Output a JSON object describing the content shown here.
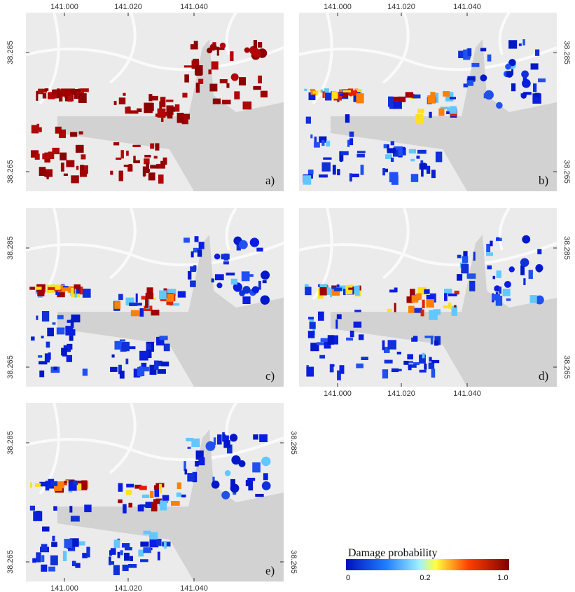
{
  "x_ticks": [
    "141.000",
    "141.020",
    "141.040"
  ],
  "y_ticks": [
    "38.285",
    "38.265"
  ],
  "panels": [
    {
      "label": "a)"
    },
    {
      "label": "b)"
    },
    {
      "label": "c)"
    },
    {
      "label": "d)"
    },
    {
      "label": "e)"
    }
  ],
  "legend": {
    "title": "Damage probability",
    "labels": [
      "0",
      "0.2",
      "1.0"
    ]
  }
}
